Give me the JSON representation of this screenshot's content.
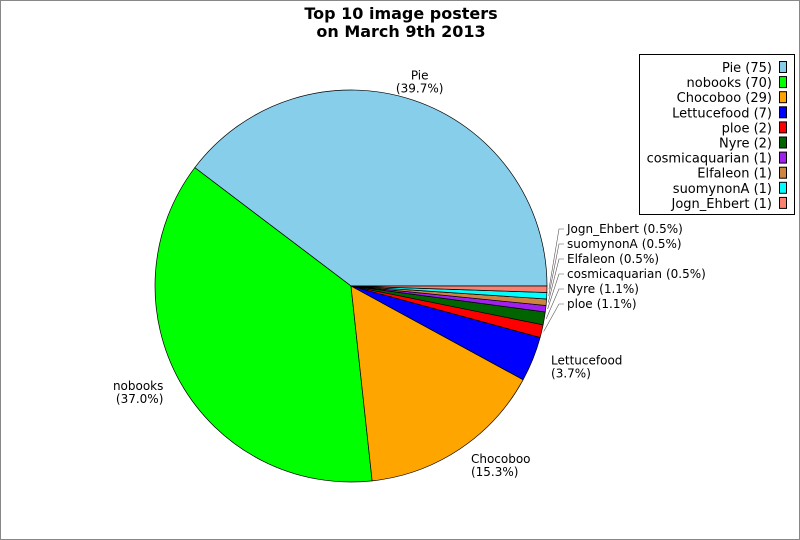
{
  "chart_data": {
    "type": "pie",
    "title": [
      "Top 10 image posters",
      "on March 9th 2013"
    ],
    "start_angle_deg": 0,
    "direction": "counterclockwise",
    "legend_position": "top-right",
    "slices": [
      {
        "label": "Pie",
        "value": 75,
        "percent": "39.7%",
        "color": "#87CEEB",
        "legend": "Pie (75)"
      },
      {
        "label": "nobooks",
        "value": 70,
        "percent": "37.0%",
        "color": "#00FF00",
        "legend": "nobooks (70)"
      },
      {
        "label": "Chocoboo",
        "value": 29,
        "percent": "15.3%",
        "color": "#FFA500",
        "legend": "Chocoboo (29)"
      },
      {
        "label": "Lettucefood",
        "value": 7,
        "percent": "3.7%",
        "color": "#0000FF",
        "legend": "Lettucefood (7)"
      },
      {
        "label": "ploe",
        "value": 2,
        "percent": "1.1%",
        "color": "#FF0000",
        "legend": "ploe (2)"
      },
      {
        "label": "Nyre",
        "value": 2,
        "percent": "1.1%",
        "color": "#006400",
        "legend": "Nyre (2)"
      },
      {
        "label": "cosmicaquarian",
        "value": 1,
        "percent": "0.5%",
        "color": "#A020F0",
        "legend": "cosmicaquarian (1)"
      },
      {
        "label": "Elfaleon",
        "value": 1,
        "percent": "0.5%",
        "color": "#CD853F",
        "legend": "Elfaleon (1)"
      },
      {
        "label": "suomynonA",
        "value": 1,
        "percent": "0.5%",
        "color": "#00FFFF",
        "legend": "suomynonA (1)"
      },
      {
        "label": "Jogn_Ehbert",
        "value": 1,
        "percent": "0.5%",
        "color": "#FA8072",
        "legend": "Jogn_Ehbert (1)"
      }
    ]
  }
}
